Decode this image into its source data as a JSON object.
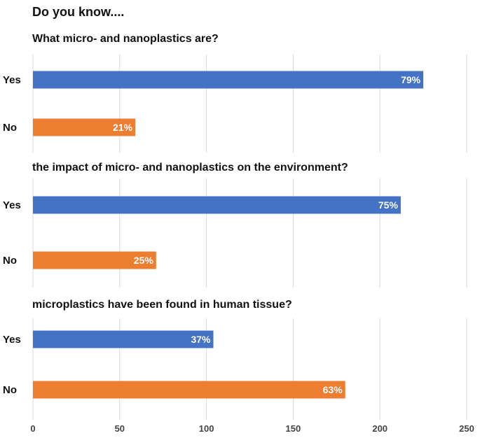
{
  "title": "Do you know....",
  "colors": {
    "Yes": "#4472c4",
    "No": "#ed7d31",
    "grid": "#d9d9d9"
  },
  "chart_data": [
    {
      "type": "bar",
      "orientation": "horizontal",
      "title": "What micro- and nanoplastics are?",
      "categories": [
        "Yes",
        "No"
      ],
      "values": [
        225,
        59
      ],
      "data_labels": [
        "79%",
        "21%"
      ],
      "xlim": [
        0,
        250
      ],
      "grid": true
    },
    {
      "type": "bar",
      "orientation": "horizontal",
      "title": "the impact of micro- and nanoplastics on the environment?",
      "categories": [
        "Yes",
        "No"
      ],
      "values": [
        212,
        71
      ],
      "data_labels": [
        "75%",
        "25%"
      ],
      "xlim": [
        0,
        250
      ],
      "grid": true
    },
    {
      "type": "bar",
      "orientation": "horizontal",
      "title": "microplastics have been found in human tissue?",
      "categories": [
        "Yes",
        "No"
      ],
      "values": [
        104,
        180
      ],
      "data_labels": [
        "37%",
        "63%"
      ],
      "xlim": [
        0,
        250
      ],
      "grid": true
    }
  ],
  "x_axis": {
    "ticks": [
      "0",
      "50",
      "100",
      "150",
      "200",
      "250"
    ]
  }
}
